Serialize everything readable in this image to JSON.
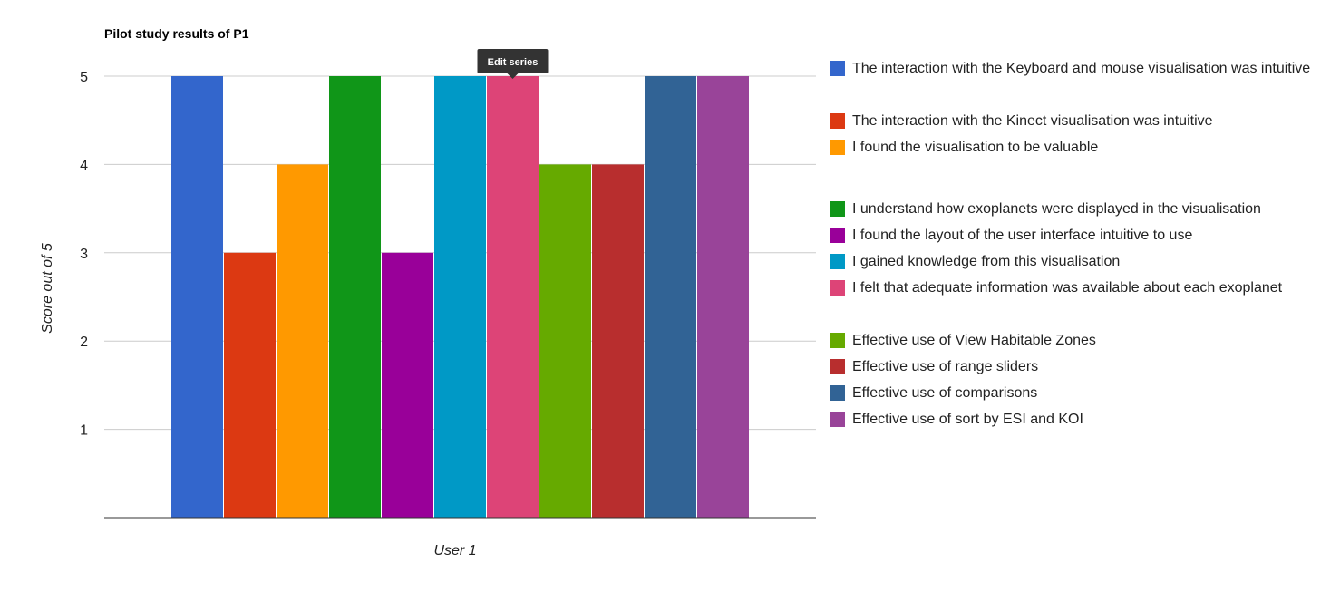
{
  "chart_data": {
    "type": "bar",
    "title": "Pilot study results of P1",
    "xlabel": "User 1",
    "ylabel": "Score out of 5",
    "categories": [
      "User 1"
    ],
    "ylim": [
      0,
      5
    ],
    "yticks": [
      1,
      2,
      3,
      4,
      5
    ],
    "grid": true,
    "legend_position": "right",
    "tooltip": "Edit series",
    "series": [
      {
        "name": "The interaction with the Keyboard and mouse visualisation was intuitive",
        "values": [
          5
        ],
        "color": "#3366cc"
      },
      {
        "name": "The interaction with the Kinect visualisation was intuitive",
        "values": [
          3
        ],
        "color": "#dc3912"
      },
      {
        "name": "I found the visualisation to be valuable",
        "values": [
          4
        ],
        "color": "#ff9900"
      },
      {
        "name": "I understand how exoplanets were displayed in the visualisation",
        "values": [
          5
        ],
        "color": "#109618"
      },
      {
        "name": "I found the layout of the user interface intuitive to use",
        "values": [
          3
        ],
        "color": "#990099"
      },
      {
        "name": "I gained knowledge from this visualisation",
        "values": [
          5
        ],
        "color": "#0099c6"
      },
      {
        "name": "I felt that adequate information was available about each exoplanet",
        "values": [
          5
        ],
        "color": "#dd4477"
      },
      {
        "name": "Effective use of View Habitable Zones",
        "values": [
          4
        ],
        "color": "#66aa00"
      },
      {
        "name": "Effective use of range sliders",
        "values": [
          4
        ],
        "color": "#b82e2e"
      },
      {
        "name": "Effective use of comparisons",
        "values": [
          5
        ],
        "color": "#316395"
      },
      {
        "name": "Effective use of sort by ESI and KOI",
        "values": [
          5
        ],
        "color": "#994499"
      }
    ]
  }
}
